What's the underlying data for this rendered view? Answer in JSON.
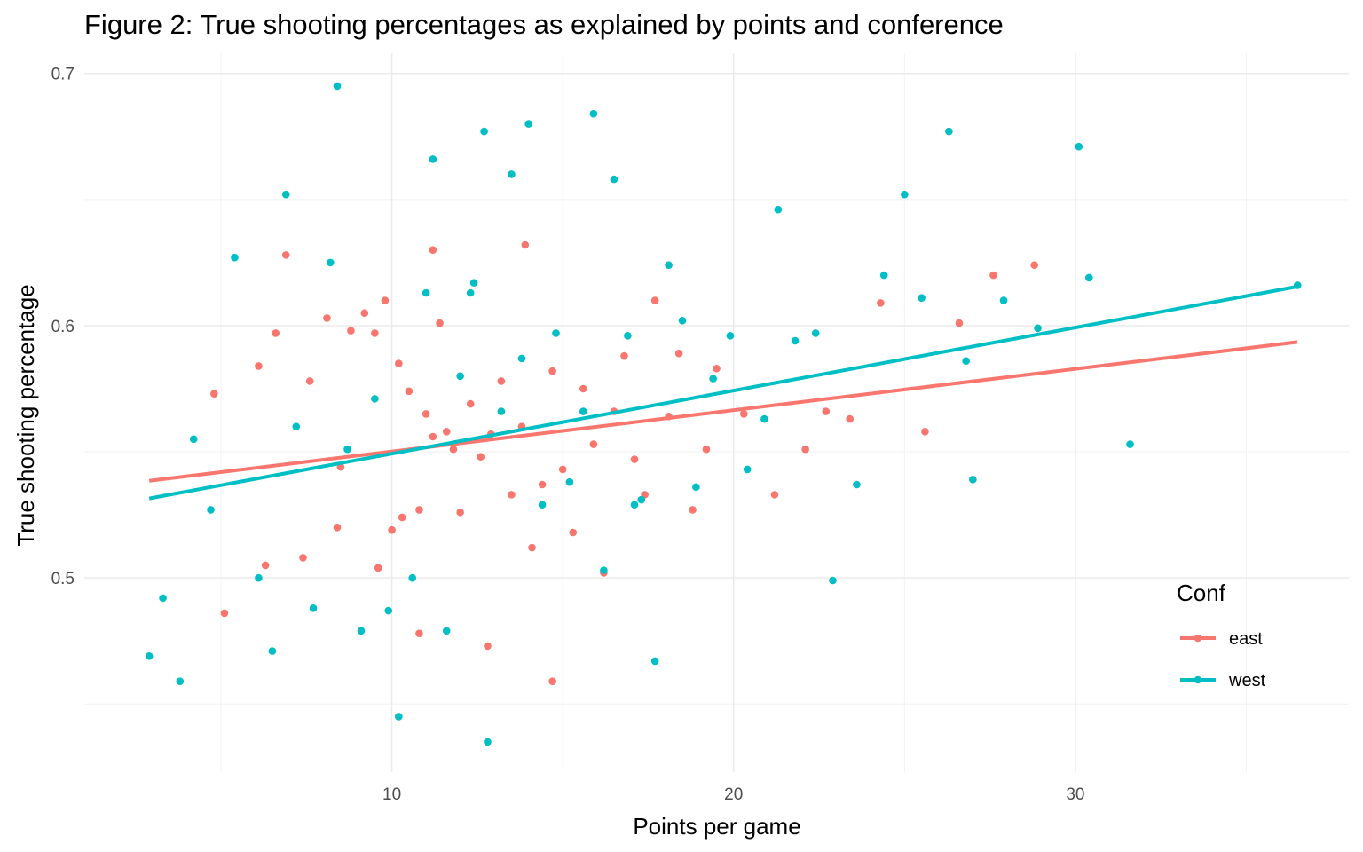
{
  "chart_data": {
    "type": "scatter",
    "title": "Figure 2: True shooting percentages as explained by points and conference",
    "xlabel": "Points per game",
    "ylabel": "True shooting percentage",
    "xlim": [
      1.0,
      38.0
    ],
    "ylim": [
      0.423,
      0.708
    ],
    "x_ticks": [
      10,
      20,
      30
    ],
    "y_ticks": [
      0.5,
      0.6,
      0.7
    ],
    "x_tick_labels": [
      "10",
      "20",
      "30"
    ],
    "y_tick_labels": [
      "0.5",
      "0.6",
      "0.7"
    ],
    "grid": true,
    "legend": {
      "title": "Conf",
      "position": "right"
    },
    "series": [
      {
        "name": "east",
        "color": "#F8766D",
        "trend": [
          [
            2.9,
            0.5385
          ],
          [
            36.5,
            0.5935
          ]
        ],
        "points": [
          [
            4.8,
            0.573
          ],
          [
            5.1,
            0.486
          ],
          [
            6.1,
            0.584
          ],
          [
            6.3,
            0.505
          ],
          [
            6.6,
            0.597
          ],
          [
            6.9,
            0.628
          ],
          [
            7.4,
            0.508
          ],
          [
            7.6,
            0.578
          ],
          [
            8.1,
            0.603
          ],
          [
            8.4,
            0.52
          ],
          [
            8.5,
            0.544
          ],
          [
            8.8,
            0.598
          ],
          [
            9.2,
            0.605
          ],
          [
            9.5,
            0.597
          ],
          [
            9.6,
            0.504
          ],
          [
            9.8,
            0.61
          ],
          [
            10.0,
            0.519
          ],
          [
            10.2,
            0.585
          ],
          [
            10.3,
            0.524
          ],
          [
            10.5,
            0.574
          ],
          [
            10.8,
            0.527
          ],
          [
            11.0,
            0.565
          ],
          [
            11.2,
            0.556
          ],
          [
            11.4,
            0.601
          ],
          [
            11.6,
            0.558
          ],
          [
            11.8,
            0.551
          ],
          [
            12.0,
            0.526
          ],
          [
            12.3,
            0.569
          ],
          [
            12.6,
            0.548
          ],
          [
            12.9,
            0.557
          ],
          [
            13.2,
            0.578
          ],
          [
            13.5,
            0.533
          ],
          [
            13.8,
            0.56
          ],
          [
            14.1,
            0.512
          ],
          [
            14.4,
            0.537
          ],
          [
            14.7,
            0.582
          ],
          [
            15.0,
            0.543
          ],
          [
            15.3,
            0.518
          ],
          [
            15.6,
            0.575
          ],
          [
            15.9,
            0.553
          ],
          [
            16.2,
            0.502
          ],
          [
            16.5,
            0.566
          ],
          [
            16.8,
            0.588
          ],
          [
            17.1,
            0.547
          ],
          [
            17.4,
            0.533
          ],
          [
            17.7,
            0.61
          ],
          [
            18.1,
            0.564
          ],
          [
            18.4,
            0.589
          ],
          [
            18.8,
            0.527
          ],
          [
            19.2,
            0.551
          ],
          [
            19.5,
            0.583
          ],
          [
            20.3,
            0.565
          ],
          [
            21.2,
            0.533
          ],
          [
            22.1,
            0.551
          ],
          [
            22.7,
            0.566
          ],
          [
            23.4,
            0.563
          ],
          [
            24.3,
            0.609
          ],
          [
            25.6,
            0.558
          ],
          [
            26.6,
            0.601
          ],
          [
            27.6,
            0.62
          ],
          [
            28.8,
            0.624
          ],
          [
            10.8,
            0.478
          ],
          [
            14.7,
            0.459
          ],
          [
            12.8,
            0.473
          ],
          [
            13.9,
            0.632
          ],
          [
            11.2,
            0.63
          ]
        ]
      },
      {
        "name": "west",
        "color": "#00BFC4",
        "trend": [
          [
            2.9,
            0.5315
          ],
          [
            36.5,
            0.6155
          ]
        ],
        "points": [
          [
            2.9,
            0.469
          ],
          [
            3.3,
            0.492
          ],
          [
            3.8,
            0.459
          ],
          [
            4.2,
            0.555
          ],
          [
            4.7,
            0.527
          ],
          [
            5.4,
            0.627
          ],
          [
            6.1,
            0.5
          ],
          [
            6.5,
            0.471
          ],
          [
            6.9,
            0.652
          ],
          [
            7.2,
            0.56
          ],
          [
            7.7,
            0.488
          ],
          [
            8.2,
            0.625
          ],
          [
            8.4,
            0.695
          ],
          [
            8.7,
            0.551
          ],
          [
            9.1,
            0.479
          ],
          [
            9.5,
            0.571
          ],
          [
            9.9,
            0.487
          ],
          [
            10.2,
            0.445
          ],
          [
            10.6,
            0.5
          ],
          [
            11.0,
            0.613
          ],
          [
            11.2,
            0.666
          ],
          [
            11.6,
            0.479
          ],
          [
            12.0,
            0.58
          ],
          [
            12.4,
            0.617
          ],
          [
            12.7,
            0.677
          ],
          [
            12.8,
            0.435
          ],
          [
            13.2,
            0.566
          ],
          [
            13.5,
            0.66
          ],
          [
            13.8,
            0.587
          ],
          [
            14.0,
            0.68
          ],
          [
            14.4,
            0.529
          ],
          [
            14.8,
            0.597
          ],
          [
            15.2,
            0.538
          ],
          [
            15.6,
            0.566
          ],
          [
            15.9,
            0.684
          ],
          [
            16.2,
            0.503
          ],
          [
            16.5,
            0.658
          ],
          [
            16.9,
            0.596
          ],
          [
            17.3,
            0.531
          ],
          [
            17.7,
            0.467
          ],
          [
            18.1,
            0.624
          ],
          [
            18.5,
            0.602
          ],
          [
            18.9,
            0.536
          ],
          [
            19.4,
            0.579
          ],
          [
            19.9,
            0.596
          ],
          [
            20.4,
            0.543
          ],
          [
            20.9,
            0.563
          ],
          [
            21.3,
            0.646
          ],
          [
            21.8,
            0.594
          ],
          [
            22.4,
            0.597
          ],
          [
            22.9,
            0.499
          ],
          [
            23.6,
            0.537
          ],
          [
            24.4,
            0.62
          ],
          [
            25.0,
            0.652
          ],
          [
            25.5,
            0.611
          ],
          [
            26.3,
            0.677
          ],
          [
            27.0,
            0.539
          ],
          [
            27.9,
            0.61
          ],
          [
            28.9,
            0.599
          ],
          [
            30.1,
            0.671
          ],
          [
            30.4,
            0.619
          ],
          [
            31.6,
            0.553
          ],
          [
            36.5,
            0.616
          ],
          [
            12.3,
            0.613
          ],
          [
            17.1,
            0.529
          ],
          [
            26.8,
            0.586
          ]
        ]
      }
    ]
  }
}
